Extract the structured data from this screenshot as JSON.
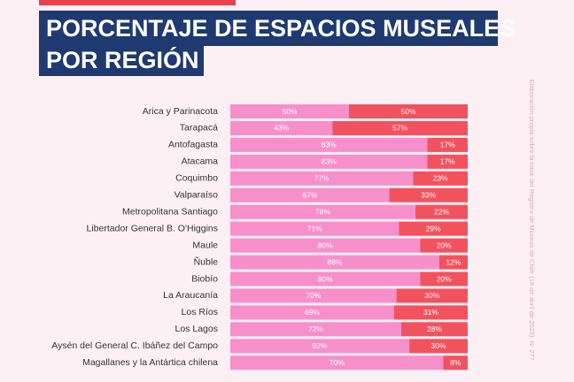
{
  "chart_data": {
    "type": "bar",
    "title_lines": [
      "PORCENTAJE DE ESPACIOS MUSEALES",
      "POR REGIÓN"
    ],
    "source": "Elaboración propia sobre la base del Registro de Museos de Chile (18 de abril de 2023). N: 277.",
    "categories": [
      "Arica y Parinacota",
      "Tarapacá",
      "Antofagasta",
      "Atacama",
      "Coquimbo",
      "Valparaíso",
      "Metropolitana Santiago",
      "Libertador General B. O'Higgins",
      "Maule",
      "Ñuble",
      "Biobío",
      "La Araucanía",
      "Los Ríos",
      "Los Lagos",
      "Aysén del General C. Ibáñez del Campo",
      "Magallanes y la Antártica chilena"
    ],
    "series": [
      {
        "color": "#f78fcb",
        "values": [
          50,
          43,
          83,
          83,
          77,
          67,
          78,
          71,
          80,
          88,
          80,
          70,
          69,
          72,
          92,
          70
        ],
        "value_labels": [
          "50%",
          "43%",
          "83%",
          "83%",
          "77%",
          "67%",
          "78%",
          "71%",
          "80%",
          "88%",
          "80%",
          "70%",
          "69%",
          "72%",
          "92%",
          "70%"
        ]
      },
      {
        "color": "#f2525e",
        "values": [
          50,
          57,
          17,
          17,
          23,
          33,
          22,
          29,
          20,
          12,
          20,
          30,
          31,
          28,
          30,
          8
        ],
        "value_labels": [
          "50%",
          "57%",
          "17%",
          "17%",
          "23%",
          "33%",
          "22%",
          "29%",
          "20%",
          "12%",
          "20%",
          "30%",
          "31%",
          "28%",
          "30%",
          "8%"
        ]
      }
    ]
  }
}
